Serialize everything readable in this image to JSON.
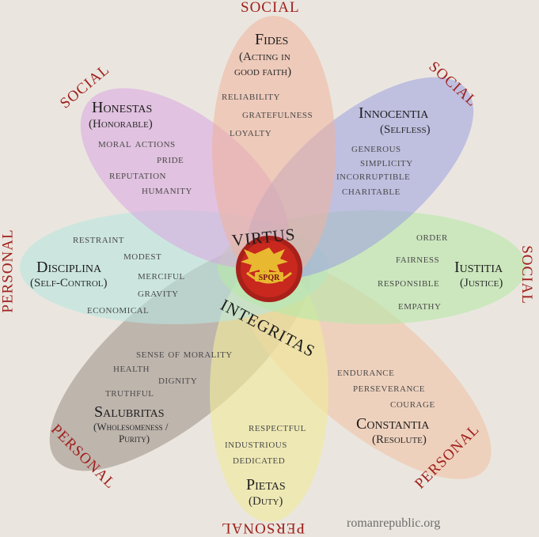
{
  "colors": {
    "background": "#eae6df",
    "group_text": "#a0201c",
    "fides": "#f0b39a",
    "innocentia": "#9a9ee0",
    "iustitia": "#b8e8a8",
    "constantia": "#f0c0a0",
    "pietas": "#f0ea9c",
    "salubritas": "#8a7a70",
    "disciplina": "#b8e6e0",
    "honestas": "#d8a4e0",
    "emblem_red": "#c8281e",
    "emblem_gold": "#e8b830"
  },
  "center": {
    "top_word": "VIRTUS",
    "bottom_word": "INTEGRITAS",
    "emblem_icon": "spqr-eagle-icon",
    "emblem_text": "SPQR"
  },
  "group_labels": {
    "top": "SOCIAL",
    "top_left": "SOCIAL",
    "top_right": "SOCIAL",
    "right": "SOCIAL",
    "left": "PERSONAL",
    "bottom_left": "PERSONAL",
    "bottom": "PERSONAL",
    "bottom_right": "PERSONAL"
  },
  "virtues": {
    "fides": {
      "name": "Fides",
      "sub1": "(Acting in",
      "sub2": "good faith)",
      "traits": [
        "reliability",
        "gratefulness",
        "loyalty"
      ]
    },
    "innocentia": {
      "name": "Innocentia",
      "sub": "(Selfless)",
      "traits": [
        "generous",
        "simplicity",
        "incorruptible",
        "charitable"
      ]
    },
    "iustitia": {
      "name": "Iustitia",
      "sub": "(Justice)",
      "traits": [
        "order",
        "fairness",
        "responsible",
        "empathy"
      ]
    },
    "constantia": {
      "name": "Constantia",
      "sub": "(Resolute)",
      "traits": [
        "endurance",
        "perseverance",
        "courage"
      ]
    },
    "pietas": {
      "name": "Pietas",
      "sub": "(Duty)",
      "traits": [
        "respectful",
        "industrious",
        "dedicated"
      ]
    },
    "salubritas": {
      "name": "Salubritas",
      "sub": "(Wholesomeness / Purity)",
      "sub1": "(Wholesomeness /",
      "sub2": "Purity)",
      "traits": [
        "sense of morality",
        "health",
        "dignity",
        "truthful"
      ]
    },
    "disciplina": {
      "name": "Disciplina",
      "sub": "(Self-Control)",
      "traits": [
        "restraint",
        "modest",
        "merciful",
        "gravity",
        "economical"
      ]
    },
    "honestas": {
      "name": "Honestas",
      "sub": "(Honorable)",
      "traits": [
        "moral actions",
        "pride",
        "reputation",
        "humanity"
      ]
    }
  },
  "credit": "romanrepublic.org"
}
